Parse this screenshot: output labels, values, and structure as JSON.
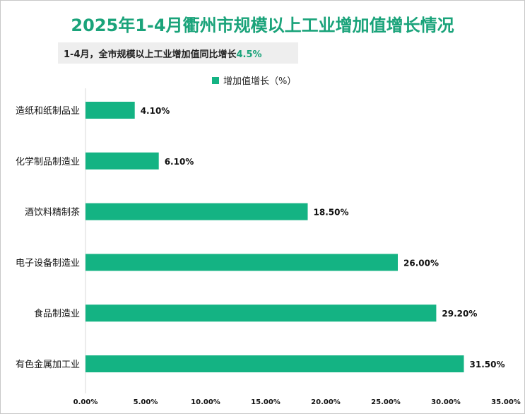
{
  "title": "2025年1-4月衢州市规模以上工业增加值增长情况",
  "subtitle_text": "1-4月，全市规模以上工业增加值同比增长",
  "subtitle_value": "4.5%",
  "colors": {
    "bar": "#14b383",
    "title": "#1aa37a"
  },
  "chart_data": {
    "type": "bar",
    "orientation": "horizontal",
    "categories": [
      "造纸和纸制品业",
      "化学制品制造业",
      "酒饮料精制茶",
      "电子设备制造业",
      "食品制造业",
      "有色金属加工业"
    ],
    "series": [
      {
        "name": "增加值增长（%）",
        "values": [
          4.1,
          6.1,
          18.5,
          26.0,
          29.2,
          31.5
        ]
      }
    ],
    "value_labels": [
      "4.10%",
      "6.10%",
      "18.50%",
      "26.00%",
      "29.20%",
      "31.50%"
    ],
    "xlim": [
      0,
      35
    ],
    "xticks": [
      0,
      5,
      10,
      15,
      20,
      25,
      30,
      35
    ],
    "xtick_labels": [
      "0.00%",
      "5.00%",
      "10.00%",
      "15.00%",
      "20.00%",
      "25.00%",
      "30.00%",
      "35.00%"
    ],
    "grid": false,
    "legend_position": "top"
  }
}
